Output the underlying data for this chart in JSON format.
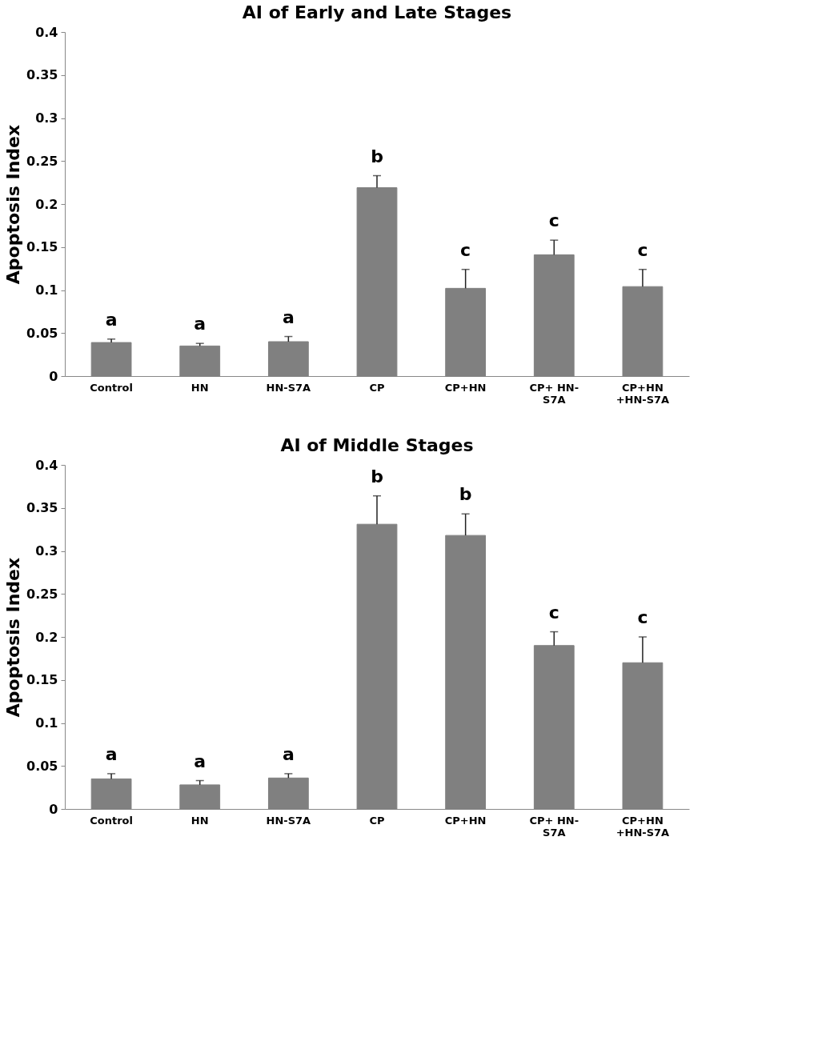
{
  "chart_data": [
    {
      "type": "bar",
      "title": "AI of Early and Late Stages",
      "ylabel": "Apoptosis Index",
      "categories": [
        "Control",
        "HN",
        "HN-S7A",
        "CP",
        "CP+HN",
        "CP+ HN-\nS7A",
        "CP+HN\n+HN-S7A"
      ],
      "values": [
        0.039,
        0.035,
        0.04,
        0.219,
        0.102,
        0.141,
        0.104
      ],
      "color": "#808080",
      "errors": [
        [
          0.039,
          0.043
        ],
        [
          0.035,
          0.038
        ],
        [
          0.04,
          0.046
        ],
        [
          0.219,
          0.233
        ],
        [
          0.102,
          0.124
        ],
        [
          0.141,
          0.158
        ],
        [
          0.104,
          0.124
        ]
      ],
      "ylim": [
        0,
        0.4
      ],
      "yticks": [
        0,
        0.05,
        0.1,
        0.15,
        0.2,
        0.25,
        0.3,
        0.35,
        0.4
      ],
      "grid": false,
      "annotations": [
        {
          "text": "a",
          "x": "Control",
          "y": 0.043
        },
        {
          "text": "a",
          "x": "HN",
          "y": 0.038
        },
        {
          "text": "a",
          "x": "HN-S7A",
          "y": 0.046
        },
        {
          "text": "b",
          "x": "CP",
          "y": 0.233
        },
        {
          "text": "c",
          "x": "CP+HN",
          "y": 0.124
        },
        {
          "text": "c",
          "x": "CP+ HN-\nS7A",
          "y": 0.158
        },
        {
          "text": "c",
          "x": "CP+HN\n+HN-S7A",
          "y": 0.124
        }
      ]
    },
    {
      "type": "bar",
      "title": "AI of Middle Stages",
      "ylabel": "Apoptosis Index",
      "categories": [
        "Control",
        "HN",
        "HN-S7A",
        "CP",
        "CP+HN",
        "CP+ HN-\nS7A",
        "CP+HN\n+HN-S7A"
      ],
      "values": [
        0.035,
        0.028,
        0.036,
        0.331,
        0.318,
        0.19,
        0.17
      ],
      "color": "#808080",
      "errors": [
        [
          0.035,
          0.041
        ],
        [
          0.028,
          0.033
        ],
        [
          0.036,
          0.041
        ],
        [
          0.331,
          0.364
        ],
        [
          0.318,
          0.343
        ],
        [
          0.19,
          0.206
        ],
        [
          0.17,
          0.2
        ]
      ],
      "ylim": [
        0,
        0.4
      ],
      "yticks": [
        0,
        0.05,
        0.1,
        0.15,
        0.2,
        0.25,
        0.3,
        0.35,
        0.4
      ],
      "grid": false,
      "annotations": [
        {
          "text": "a",
          "x": "Control",
          "y": 0.041
        },
        {
          "text": "a",
          "x": "HN",
          "y": 0.033
        },
        {
          "text": "a",
          "x": "HN-S7A",
          "y": 0.041
        },
        {
          "text": "b",
          "x": "CP",
          "y": 0.364
        },
        {
          "text": "b",
          "x": "CP+HN",
          "y": 0.343
        },
        {
          "text": "c",
          "x": "CP+ HN-\nS7A",
          "y": 0.206
        },
        {
          "text": "c",
          "x": "CP+HN\n+HN-S7A",
          "y": 0.2
        }
      ]
    }
  ]
}
